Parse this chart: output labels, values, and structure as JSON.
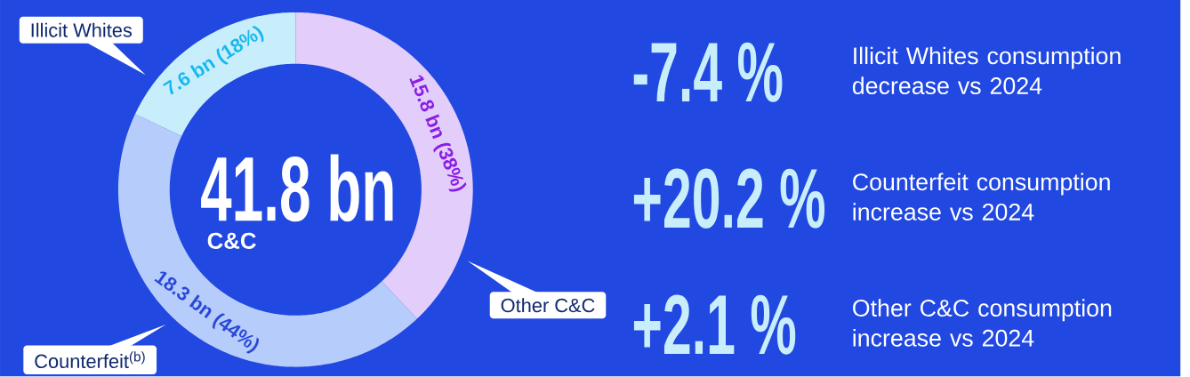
{
  "chart_data": {
    "type": "donut",
    "title": "41.8 bn",
    "subtitle": "C&C",
    "categories": [
      "Other C&C",
      "Counterfeit$^{(b)}$",
      "Illicit Whites"
    ],
    "values": [
      38,
      44,
      18
    ],
    "colors": [
      "#e2cdfb",
      "#b6cdfb",
      "#c8eefc"
    ],
    "value_labels": [
      "15.8 bn (38%)",
      "18.3 bn (44%)",
      "7.6 bn (18%)"
    ],
    "annotations": [
      "-7.4 %",
      "Illicit Whites consumption decrease vs 2024",
      "+20.2 %",
      "Counterfeit consumption increase vs 2024",
      "+2.1 %",
      "Other C&C consumption increase vs 2024"
    ]
  }
}
